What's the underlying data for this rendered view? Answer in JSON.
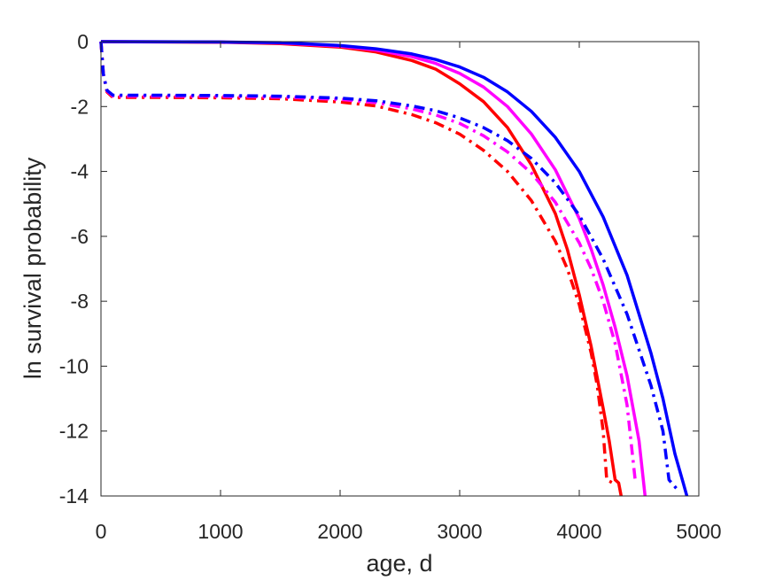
{
  "chart_data": {
    "type": "line",
    "title": "",
    "xlabel": "age, d",
    "ylabel": "ln survival probability",
    "xlim": [
      0,
      5000
    ],
    "ylim": [
      -14,
      0
    ],
    "xticks": [
      0,
      1000,
      2000,
      3000,
      4000,
      5000
    ],
    "yticks": [
      0,
      -2,
      -4,
      -6,
      -8,
      -10,
      -12,
      -14
    ],
    "xtick_labels": [
      "0",
      "1000",
      "2000",
      "3000",
      "4000",
      "5000"
    ],
    "ytick_labels": [
      "0",
      "-2",
      "-4",
      "-6",
      "-8",
      "-10",
      "-12",
      "-14"
    ],
    "grid": false,
    "legend": "none",
    "series": [
      {
        "color": "#ff0000",
        "style": "solid",
        "x": [
          0,
          1000,
          1500,
          2000,
          2300,
          2600,
          2800,
          3000,
          3200,
          3400,
          3600,
          3800,
          3900,
          4000,
          4100,
          4200,
          4250,
          4300,
          4330,
          4350
        ],
        "y": [
          0,
          -0.02,
          -0.06,
          -0.17,
          -0.32,
          -0.58,
          -0.85,
          -1.3,
          -1.85,
          -2.65,
          -3.8,
          -5.3,
          -6.4,
          -7.8,
          -9.4,
          -11.3,
          -12.3,
          -13.5,
          -13.6,
          -14.0
        ]
      },
      {
        "color": "#ff00ff",
        "style": "solid",
        "x": [
          0,
          1000,
          1500,
          2000,
          2300,
          2600,
          2800,
          3000,
          3200,
          3400,
          3600,
          3800,
          4000,
          4100,
          4200,
          4300,
          4400,
          4500,
          4550
        ],
        "y": [
          0,
          -0.01,
          -0.04,
          -0.14,
          -0.26,
          -0.46,
          -0.67,
          -0.98,
          -1.4,
          -2.0,
          -2.85,
          -3.95,
          -5.45,
          -6.4,
          -7.5,
          -8.8,
          -10.3,
          -12.3,
          -14.0
        ]
      },
      {
        "color": "#0000ff",
        "style": "solid",
        "x": [
          0,
          1000,
          1500,
          2000,
          2300,
          2600,
          2800,
          3000,
          3200,
          3400,
          3600,
          3800,
          4000,
          4200,
          4400,
          4600,
          4700,
          4800,
          4870,
          4900
        ],
        "y": [
          0,
          -0.01,
          -0.03,
          -0.12,
          -0.22,
          -0.38,
          -0.55,
          -0.78,
          -1.1,
          -1.55,
          -2.15,
          -2.95,
          -4.0,
          -5.4,
          -7.2,
          -9.6,
          -11.0,
          -12.7,
          -13.6,
          -14.0
        ]
      },
      {
        "color": "#ff0000",
        "style": "dashdot",
        "x": [
          0,
          20,
          50,
          100,
          500,
          1000,
          1500,
          2000,
          2300,
          2600,
          2800,
          3000,
          3200,
          3400,
          3600,
          3800,
          3900,
          4000,
          4100,
          4150,
          4200,
          4230,
          4280
        ],
        "y": [
          0,
          -1.0,
          -1.55,
          -1.72,
          -1.72,
          -1.73,
          -1.76,
          -1.86,
          -1.98,
          -2.25,
          -2.5,
          -2.85,
          -3.35,
          -4.0,
          -4.9,
          -6.15,
          -7.0,
          -8.1,
          -9.6,
          -10.6,
          -12.0,
          -13.5,
          -13.6
        ]
      },
      {
        "color": "#ff00ff",
        "style": "dashdot",
        "x": [
          0,
          20,
          50,
          100,
          500,
          1000,
          1500,
          2000,
          2300,
          2600,
          2800,
          3000,
          3200,
          3400,
          3600,
          3800,
          4000,
          4100,
          4200,
          4300,
          4400,
          4470
        ],
        "y": [
          0,
          -1.0,
          -1.52,
          -1.68,
          -1.68,
          -1.69,
          -1.71,
          -1.78,
          -1.88,
          -2.07,
          -2.26,
          -2.52,
          -2.9,
          -3.4,
          -4.05,
          -4.95,
          -6.2,
          -7.0,
          -8.0,
          -9.3,
          -11.2,
          -13.6
        ]
      },
      {
        "color": "#0000ff",
        "style": "dashdot",
        "x": [
          0,
          20,
          50,
          100,
          500,
          1000,
          1500,
          2000,
          2300,
          2600,
          2800,
          3000,
          3200,
          3400,
          3600,
          3800,
          4000,
          4200,
          4400,
          4600,
          4700,
          4750,
          4820
        ],
        "y": [
          0,
          -1.0,
          -1.5,
          -1.65,
          -1.65,
          -1.66,
          -1.68,
          -1.74,
          -1.82,
          -1.98,
          -2.13,
          -2.35,
          -2.65,
          -3.05,
          -3.6,
          -4.35,
          -5.35,
          -6.7,
          -8.4,
          -10.6,
          -12.0,
          -13.5,
          -13.8
        ]
      }
    ]
  }
}
